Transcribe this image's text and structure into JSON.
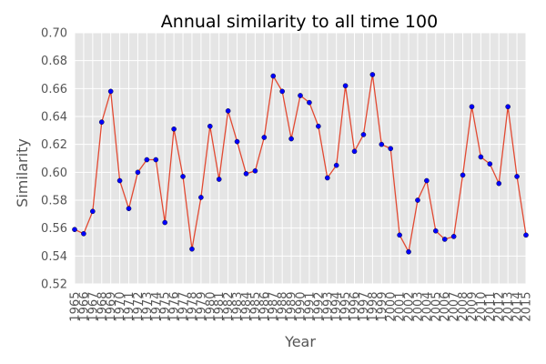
{
  "chart_data": {
    "type": "line",
    "title": "Annual similarity to all time 100",
    "xlabel": "Year",
    "ylabel": "Similarity",
    "xlim": [
      1965,
      2015
    ],
    "ylim": [
      0.52,
      0.7
    ],
    "y_ticks": [
      "0.52",
      "0.54",
      "0.56",
      "0.58",
      "0.60",
      "0.62",
      "0.64",
      "0.66",
      "0.68",
      "0.70"
    ],
    "x": [
      "1965",
      "1966",
      "1967",
      "1968",
      "1969",
      "1970",
      "1971",
      "1972",
      "1973",
      "1974",
      "1975",
      "1976",
      "1977",
      "1978",
      "1979",
      "1980",
      "1981",
      "1982",
      "1983",
      "1984",
      "1985",
      "1986",
      "1987",
      "1988",
      "1989",
      "1990",
      "1991",
      "1992",
      "1993",
      "1994",
      "1995",
      "1996",
      "1997",
      "1998",
      "1999",
      "2000",
      "2001",
      "2002",
      "2003",
      "2004",
      "2005",
      "2006",
      "2007",
      "2008",
      "2009",
      "2010",
      "2011",
      "2012",
      "2013",
      "2014",
      "2015"
    ],
    "series": [
      {
        "values": [
          0.559,
          0.556,
          0.572,
          0.636,
          0.658,
          0.594,
          0.574,
          0.6,
          0.609,
          0.609,
          0.564,
          0.631,
          0.597,
          0.545,
          0.582,
          0.633,
          0.595,
          0.644,
          0.622,
          0.599,
          0.601,
          0.625,
          0.669,
          0.658,
          0.624,
          0.655,
          0.65,
          0.633,
          0.596,
          0.605,
          0.662,
          0.615,
          0.627,
          0.67,
          0.62,
          0.617,
          0.555,
          0.543,
          0.58,
          0.594,
          0.558,
          0.552,
          0.554,
          0.598,
          0.647,
          0.611,
          0.606,
          0.592,
          0.647,
          0.597,
          0.555
        ]
      }
    ],
    "grid": true,
    "legend": "none",
    "colors": {
      "background": "#e5e5e5",
      "grid": "#ffffff",
      "line": "#e24a33",
      "marker": "#0000ff"
    }
  }
}
